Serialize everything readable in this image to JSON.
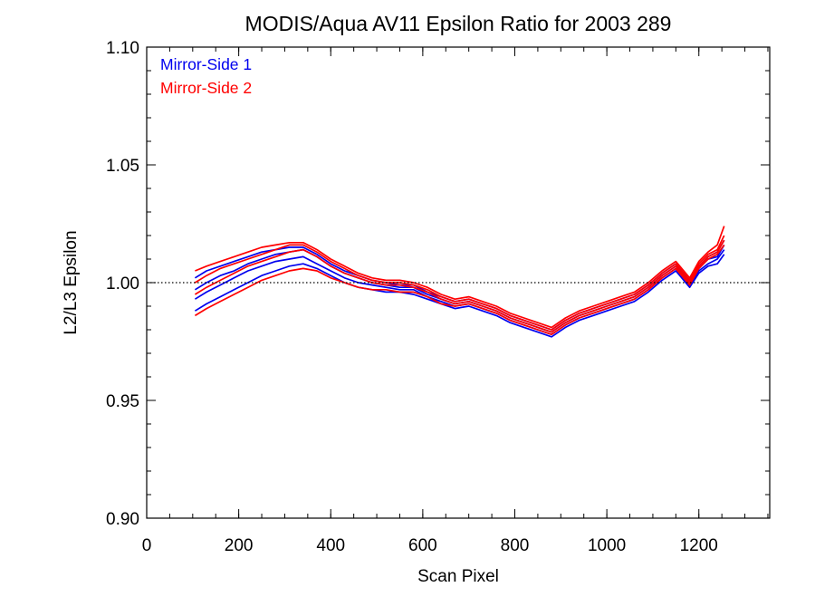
{
  "chart_data": {
    "type": "line",
    "title": "MODIS/Aqua AV11 Epsilon Ratio for 2003 289",
    "xlabel": "Scan Pixel",
    "ylabel": "L2/L3 Epsilon",
    "xlim": [
      0,
      1354
    ],
    "ylim": [
      0.9,
      1.1
    ],
    "xticks": [
      0,
      200,
      400,
      600,
      800,
      1000,
      1200
    ],
    "xtick_labels": [
      "0",
      "200",
      "400",
      "600",
      "800",
      "1000",
      "1200"
    ],
    "yticks": [
      0.9,
      0.95,
      1.0,
      1.05,
      1.1
    ],
    "ytick_labels": [
      "0.90",
      "0.95",
      "1.00",
      "1.05",
      "1.10"
    ],
    "x_minor_step": 50,
    "y_minor_step": 0.01,
    "grid": false,
    "legend_position": "top-left",
    "reference_line": {
      "y": 1.0,
      "style": "dotted"
    },
    "x": [
      105,
      130,
      160,
      190,
      220,
      250,
      280,
      310,
      340,
      370,
      400,
      430,
      460,
      490,
      520,
      550,
      580,
      610,
      640,
      670,
      700,
      730,
      760,
      790,
      820,
      850,
      880,
      910,
      940,
      970,
      1000,
      1030,
      1060,
      1090,
      1120,
      1150,
      1180,
      1200,
      1220,
      1240,
      1255
    ],
    "colors": {
      "mirror_side_1": "#0000ee",
      "mirror_side_2": "#ff0000",
      "reference": "#000000"
    },
    "series": [
      {
        "name": "Mirror-Side 1",
        "color": "#0000ee",
        "values": [
          0.988,
          0.991,
          0.994,
          0.997,
          1.0,
          1.003,
          1.005,
          1.007,
          1.008,
          1.006,
          1.003,
          1.0,
          0.998,
          0.997,
          0.996,
          0.996,
          0.995,
          0.993,
          0.991,
          0.989,
          0.99,
          0.988,
          0.986,
          0.983,
          0.981,
          0.979,
          0.977,
          0.981,
          0.984,
          0.986,
          0.988,
          0.99,
          0.992,
          0.996,
          1.001,
          1.005,
          0.998,
          1.004,
          1.007,
          1.008,
          1.012
        ]
      },
      {
        "name": "Mirror-Side 1",
        "color": "#0000ee",
        "values": [
          0.993,
          0.996,
          0.999,
          1.002,
          1.005,
          1.007,
          1.009,
          1.01,
          1.011,
          1.008,
          1.005,
          1.002,
          1.0,
          0.999,
          0.998,
          0.997,
          0.997,
          0.994,
          0.992,
          0.99,
          0.991,
          0.989,
          0.987,
          0.984,
          0.982,
          0.98,
          0.978,
          0.982,
          0.985,
          0.987,
          0.989,
          0.991,
          0.993,
          0.997,
          1.002,
          1.006,
          0.999,
          1.005,
          1.008,
          1.01,
          1.014
        ]
      },
      {
        "name": "Mirror-Side 1",
        "color": "#0000ee",
        "values": [
          0.997,
          1.0,
          1.003,
          1.005,
          1.008,
          1.01,
          1.012,
          1.013,
          1.014,
          1.011,
          1.007,
          1.004,
          1.002,
          1.0,
          0.999,
          0.998,
          0.998,
          0.995,
          0.993,
          0.991,
          0.992,
          0.99,
          0.988,
          0.985,
          0.983,
          0.981,
          0.979,
          0.983,
          0.986,
          0.988,
          0.99,
          0.992,
          0.994,
          0.998,
          1.003,
          1.007,
          1.0,
          1.006,
          1.01,
          1.011,
          1.016
        ]
      },
      {
        "name": "Mirror-Side 1",
        "color": "#0000ee",
        "values": [
          1.002,
          1.005,
          1.007,
          1.009,
          1.011,
          1.013,
          1.014,
          1.015,
          1.015,
          1.012,
          1.008,
          1.005,
          1.003,
          1.001,
          1.0,
          0.999,
          0.999,
          0.996,
          0.994,
          0.992,
          0.993,
          0.991,
          0.989,
          0.986,
          0.984,
          0.982,
          0.98,
          0.984,
          0.987,
          0.989,
          0.991,
          0.993,
          0.995,
          0.999,
          1.004,
          1.008,
          1.001,
          1.007,
          1.011,
          1.013,
          1.018
        ]
      },
      {
        "name": "Mirror-Side 2",
        "color": "#ff0000",
        "values": [
          0.986,
          0.989,
          0.992,
          0.995,
          0.998,
          1.001,
          1.003,
          1.005,
          1.006,
          1.005,
          1.002,
          1.0,
          0.998,
          0.997,
          0.997,
          0.996,
          0.996,
          0.994,
          0.991,
          0.99,
          0.991,
          0.989,
          0.987,
          0.984,
          0.982,
          0.98,
          0.978,
          0.982,
          0.985,
          0.987,
          0.989,
          0.991,
          0.993,
          0.997,
          1.002,
          1.006,
          0.999,
          1.006,
          1.01,
          1.012,
          1.016
        ]
      },
      {
        "name": "Mirror-Side 2",
        "color": "#ff0000",
        "values": [
          0.995,
          0.998,
          1.001,
          1.004,
          1.007,
          1.009,
          1.011,
          1.013,
          1.014,
          1.011,
          1.007,
          1.004,
          1.002,
          1.0,
          0.999,
          0.999,
          0.998,
          0.996,
          0.993,
          0.991,
          0.992,
          0.99,
          0.988,
          0.985,
          0.983,
          0.981,
          0.979,
          0.983,
          0.986,
          0.988,
          0.99,
          0.992,
          0.994,
          0.998,
          1.003,
          1.007,
          1.0,
          1.007,
          1.011,
          1.013,
          1.018
        ]
      },
      {
        "name": "Mirror-Side 2",
        "color": "#ff0000",
        "values": [
          1.0,
          1.003,
          1.006,
          1.008,
          1.01,
          1.012,
          1.014,
          1.016,
          1.016,
          1.013,
          1.009,
          1.006,
          1.003,
          1.001,
          1.0,
          1.0,
          0.999,
          0.997,
          0.994,
          0.992,
          0.993,
          0.991,
          0.989,
          0.986,
          0.984,
          0.982,
          0.98,
          0.984,
          0.987,
          0.989,
          0.991,
          0.993,
          0.995,
          0.999,
          1.004,
          1.008,
          1.001,
          1.008,
          1.012,
          1.014,
          1.02
        ]
      },
      {
        "name": "Mirror-Side 2",
        "color": "#ff0000",
        "values": [
          1.005,
          1.007,
          1.009,
          1.011,
          1.013,
          1.015,
          1.016,
          1.017,
          1.017,
          1.014,
          1.01,
          1.007,
          1.004,
          1.002,
          1.001,
          1.001,
          1.0,
          0.998,
          0.995,
          0.993,
          0.994,
          0.992,
          0.99,
          0.987,
          0.985,
          0.983,
          0.981,
          0.985,
          0.988,
          0.99,
          0.992,
          0.994,
          0.996,
          1.0,
          1.005,
          1.009,
          1.002,
          1.009,
          1.013,
          1.016,
          1.024
        ]
      }
    ],
    "legend": [
      {
        "label": "Mirror-Side 1",
        "color": "#0000ee"
      },
      {
        "label": "Mirror-Side 2",
        "color": "#ff0000"
      }
    ]
  }
}
